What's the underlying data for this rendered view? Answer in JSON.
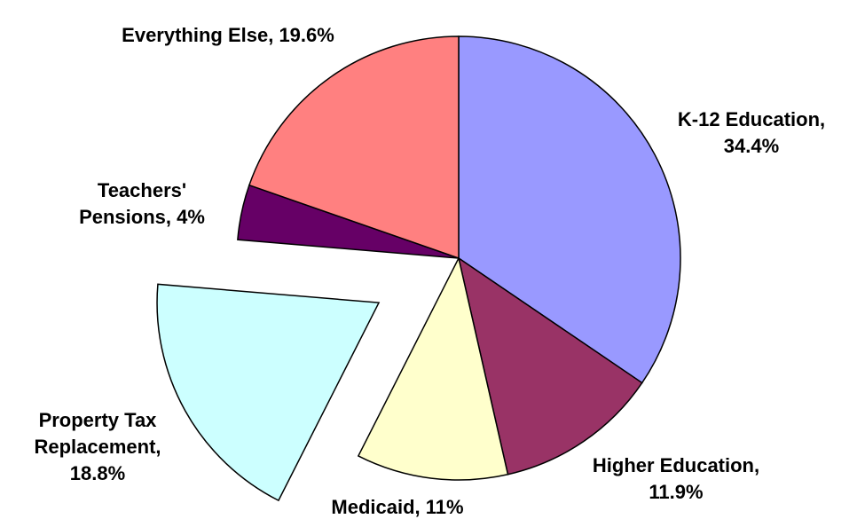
{
  "chart_data": {
    "type": "pie",
    "labels": [
      "K-12 Education, 34.4%",
      "Higher Education, 11.9%",
      "Medicaid, 11%",
      "Property Tax Replacement, 18.8%",
      "Teachers' Pensions, 4%",
      "Everything Else, 19.6%"
    ],
    "values": [
      34.4,
      11.9,
      11,
      18.8,
      4,
      19.6
    ],
    "colors": [
      "#9999ff",
      "#993366",
      "#ffffcc",
      "#ccffff",
      "#660066",
      "#ff8080"
    ],
    "explode": [
      false,
      false,
      false,
      true,
      false,
      false
    ]
  }
}
